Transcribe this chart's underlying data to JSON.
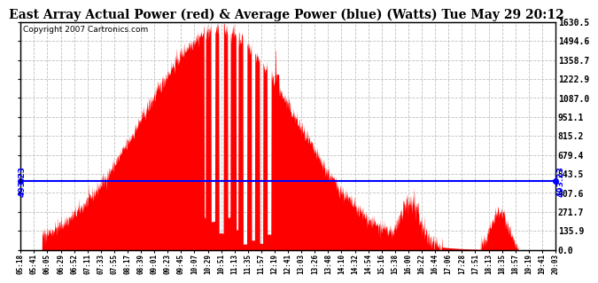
{
  "title": "East Array Actual Power (red) & Average Power (blue) (Watts) Tue May 29 20:12",
  "copyright": "Copyright 2007 Cartronics.com",
  "avg_power": 493.23,
  "y_max": 1630.5,
  "y_min": 0.0,
  "yticks": [
    0.0,
    135.9,
    271.7,
    407.6,
    543.5,
    679.4,
    815.2,
    951.1,
    1087.0,
    1222.9,
    1358.7,
    1494.6,
    1630.5
  ],
  "xtick_labels": [
    "05:18",
    "05:41",
    "06:05",
    "06:29",
    "06:52",
    "07:11",
    "07:33",
    "07:55",
    "08:17",
    "08:39",
    "09:01",
    "09:23",
    "09:45",
    "10:07",
    "10:29",
    "10:51",
    "11:13",
    "11:35",
    "11:57",
    "12:19",
    "12:41",
    "13:03",
    "13:26",
    "13:48",
    "14:10",
    "14:32",
    "14:54",
    "15:16",
    "15:38",
    "16:00",
    "16:22",
    "16:44",
    "17:06",
    "17:28",
    "17:51",
    "18:13",
    "18:35",
    "18:57",
    "19:19",
    "19:41",
    "20:03"
  ],
  "background_color": "#ffffff",
  "fill_color": "#ff0000",
  "line_color": "#0000ff",
  "grid_color": "#c0c0c0",
  "title_fontsize": 10,
  "copyright_fontsize": 6.5
}
